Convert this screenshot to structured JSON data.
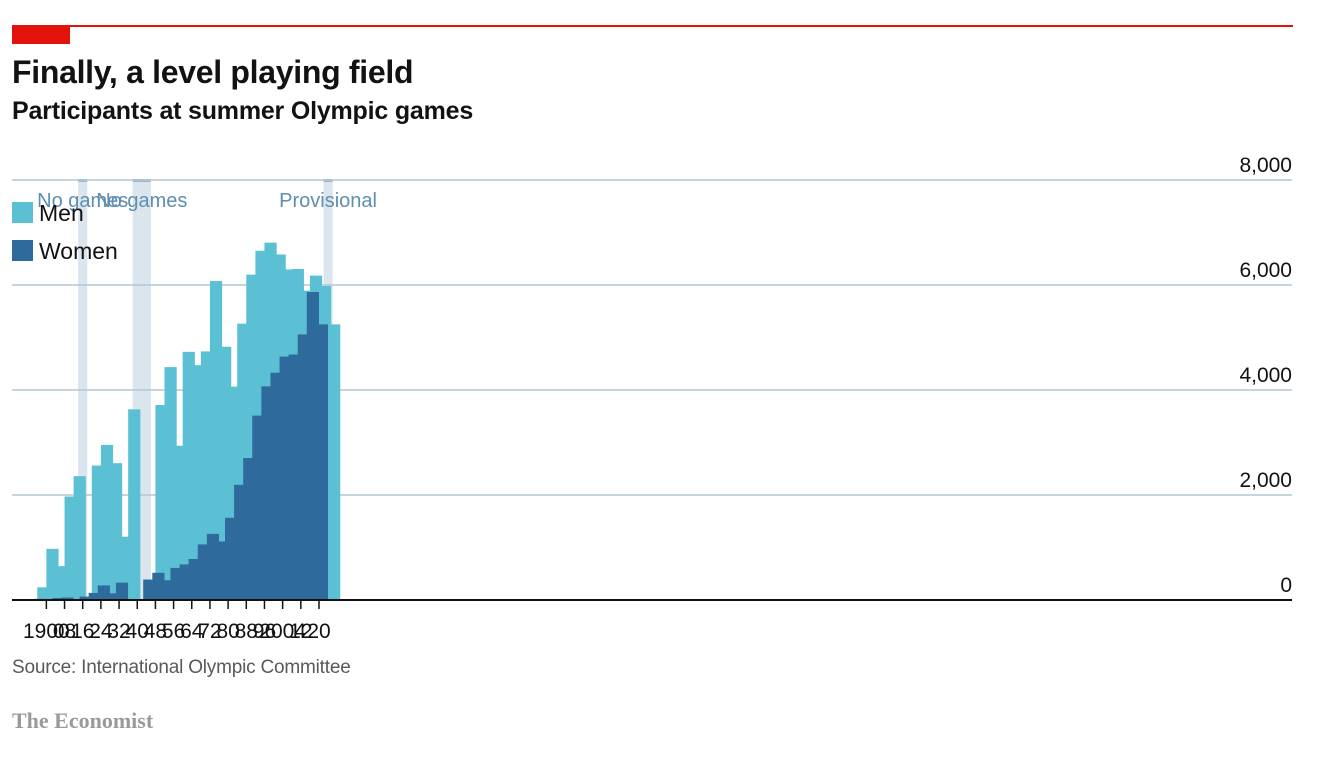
{
  "title": "Finally, a level playing field",
  "subtitle": "Participants at summer Olympic games",
  "source": "Source: International Olympic Committee",
  "brand": "The Economist",
  "colors": {
    "men": "#5bc0d4",
    "women": "#2e6a9c",
    "shade": "#dbe5ed",
    "grid": "#b4c6d4",
    "accent": "#e3120b"
  },
  "chart_data": {
    "type": "bar",
    "x": [
      1896,
      1900,
      1904,
      1908,
      1912,
      1920,
      1924,
      1928,
      1932,
      1936,
      1948,
      1952,
      1956,
      1960,
      1964,
      1968,
      1972,
      1976,
      1980,
      1984,
      1988,
      1992,
      1996,
      2000,
      2004,
      2008,
      2012,
      2016,
      2020,
      2024
    ],
    "series": [
      {
        "name": "Men",
        "values": [
          241,
          975,
          645,
          1971,
          2359,
          2561,
          2954,
          2606,
          1206,
          3632,
          3714,
          4436,
          2938,
          4727,
          4473,
          4735,
          6075,
          4824,
          4064,
          5263,
          6197,
          6652,
          6806,
          6582,
          6296,
          6305,
          5892,
          6179,
          5982,
          5250
        ]
      },
      {
        "name": "Women",
        "values": [
          0,
          22,
          6,
          37,
          48,
          65,
          135,
          277,
          126,
          331,
          390,
          519,
          376,
          611,
          678,
          781,
          1059,
          1260,
          1115,
          1566,
          2194,
          2704,
          3512,
          4069,
          4329,
          4637,
          4676,
          5059,
          5866,
          5250
        ]
      }
    ],
    "x_ticks": [
      1900,
      1908,
      1916,
      1924,
      1932,
      1940,
      1948,
      1956,
      1964,
      1972,
      1980,
      1988,
      1996,
      2004,
      2012,
      2020
    ],
    "x_tick_labels": [
      "1900",
      "08",
      "16",
      "24",
      "32",
      "40",
      "48",
      "56",
      "64",
      "72",
      "80",
      "88",
      "96",
      "2004",
      "12",
      "20"
    ],
    "y_ticks": [
      0,
      2000,
      4000,
      6000,
      8000
    ],
    "y_tick_labels": [
      "0",
      "2,000",
      "4,000",
      "6,000",
      "8,000"
    ],
    "xlim": [
      1893,
      2026
    ],
    "ylim": [
      0,
      8000
    ],
    "y_axis_side": "right",
    "grid": true,
    "legend": {
      "position": "top-left",
      "items": [
        "Men",
        "Women"
      ]
    },
    "shaded_regions": [
      {
        "from": 1914,
        "to": 1918,
        "label": "No games"
      },
      {
        "from": 1938,
        "to": 1946,
        "label": "No games"
      },
      {
        "from": 2022,
        "to": 2026,
        "label": "Provisional"
      }
    ]
  }
}
